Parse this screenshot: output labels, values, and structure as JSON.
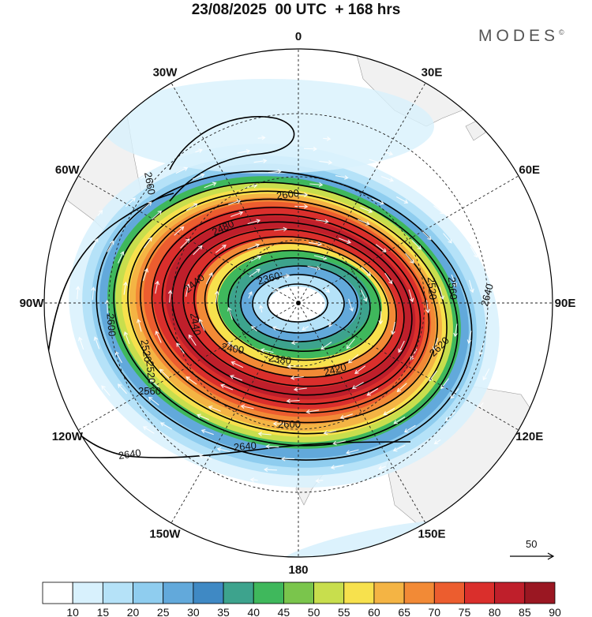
{
  "header": {
    "title": "23/08/2025  00 UTC  + 168 hrs",
    "brand": "MODES",
    "brand_mark": "©"
  },
  "map": {
    "projection": "south-polar-stereographic",
    "meridian_labels": [
      {
        "text": "0",
        "lon": 0
      },
      {
        "text": "30E",
        "lon": 30
      },
      {
        "text": "60E",
        "lon": 60
      },
      {
        "text": "90E",
        "lon": 90
      },
      {
        "text": "120E",
        "lon": 120
      },
      {
        "text": "150E",
        "lon": 150
      },
      {
        "text": "180",
        "lon": 180
      },
      {
        "text": "150W",
        "lon": -150
      },
      {
        "text": "120W",
        "lon": -120
      },
      {
        "text": "90W",
        "lon": -90
      },
      {
        "text": "60W",
        "lon": -60
      },
      {
        "text": "30W",
        "lon": -30
      }
    ],
    "contour_labels": [
      "2660",
      "2600",
      "2480",
      "2440",
      "2360",
      "2440",
      "2400",
      "2380",
      "2420",
      "2520",
      "2560",
      "2600",
      "2640",
      "2640",
      "2520",
      "2560",
      "2620",
      "2640",
      "2600",
      "2520"
    ],
    "vector_reference": "50",
    "shading_colors": [
      "#ffffff",
      "#d8f1fd",
      "#b5e2f8",
      "#8fcdef",
      "#62a9db",
      "#3f89c4",
      "#3da38d",
      "#3fb85c",
      "#7ac54c",
      "#c8de4d",
      "#f7e14d",
      "#f4b444",
      "#f28a36",
      "#ec5d2f",
      "#da2f2c",
      "#bf1f2b",
      "#9a1722"
    ],
    "colorbar_ticks": [
      "10",
      "15",
      "20",
      "25",
      "30",
      "35",
      "40",
      "45",
      "50",
      "55",
      "60",
      "65",
      "70",
      "75",
      "80",
      "85",
      "90"
    ]
  }
}
